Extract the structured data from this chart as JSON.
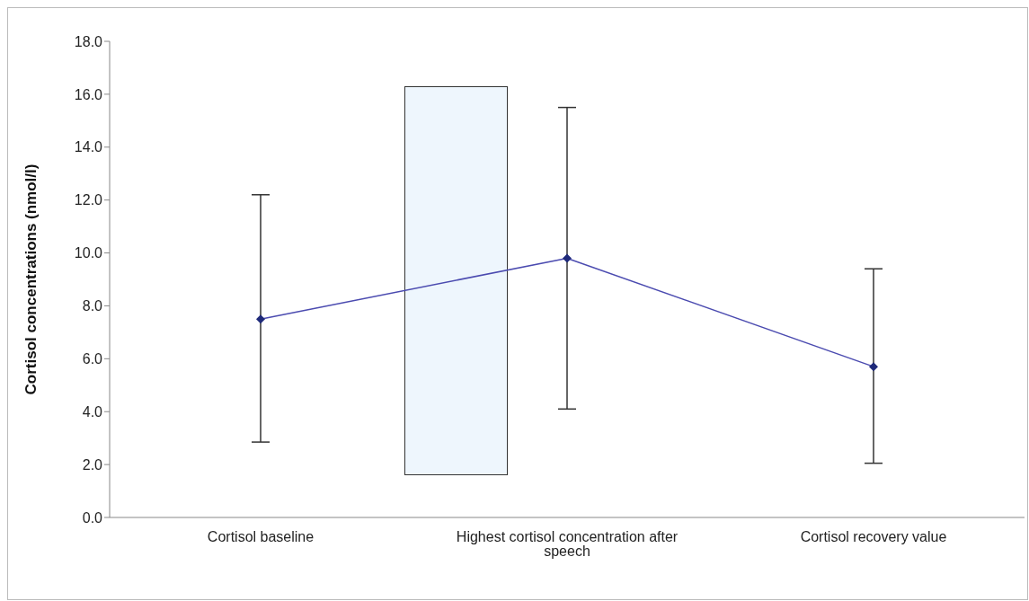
{
  "chart_data": {
    "type": "line",
    "ylabel": "Cortisol concentrations (nmol/l)",
    "categories": [
      "Cortisol baseline",
      "Highest cortisol concentration after speech",
      "Cortisol recovery value"
    ],
    "series": [
      {
        "color": "#4b4bb0",
        "values": [
          7.5,
          9.8,
          5.7
        ],
        "errors": [
          [
            2.85,
            12.2
          ],
          [
            4.1,
            15.5
          ],
          [
            2.05,
            9.4
          ]
        ]
      }
    ],
    "ylim": [
      0,
      18
    ],
    "yticks": [
      {
        "value": 0,
        "label": "0.0"
      },
      {
        "value": 2,
        "label": "2.0"
      },
      {
        "value": 4,
        "label": "4.0"
      },
      {
        "value": 6,
        "label": "6.0"
      },
      {
        "value": 8,
        "label": "8.0"
      },
      {
        "value": 10,
        "label": "10.0"
      },
      {
        "value": 12,
        "label": "12.0"
      },
      {
        "value": 14,
        "label": "14.0"
      },
      {
        "value": 16,
        "label": "16.0"
      },
      {
        "value": 18,
        "label": "18.0"
      }
    ],
    "grid": false,
    "legend": false,
    "marker": "diamond",
    "line_style": "solid"
  }
}
